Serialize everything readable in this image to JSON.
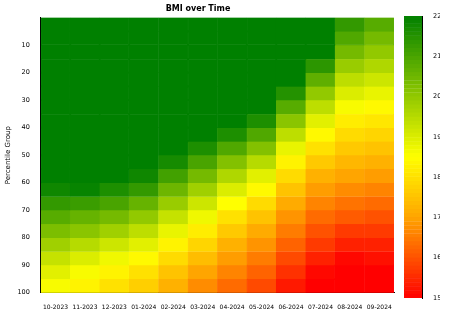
{
  "chart_data": {
    "type": "heatmap",
    "title": "BMI over Time",
    "y_label": "Percentile Group",
    "categories": [
      "10-2023",
      "11-2023",
      "12-2023",
      "01-2024",
      "02-2024",
      "03-2024",
      "04-2024",
      "05-2024",
      "06-2024",
      "07-2024",
      "08-2024",
      "09-2024"
    ],
    "y": [
      5,
      10,
      15,
      20,
      25,
      30,
      35,
      40,
      45,
      50,
      55,
      60,
      65,
      70,
      75,
      80,
      85,
      90,
      95,
      100
    ],
    "ylim": [
      0,
      100
    ],
    "yticks": [
      10,
      20,
      30,
      40,
      50,
      60,
      70,
      80,
      90,
      100
    ],
    "grid": false,
    "cells": [
      [
        22,
        22,
        22,
        22,
        22,
        22,
        22,
        22,
        22,
        22,
        21.3,
        20.8
      ],
      [
        22,
        22,
        22,
        22,
        22,
        22,
        22,
        22,
        22,
        22,
        20.9,
        20.4
      ],
      [
        22,
        22,
        22,
        22,
        22,
        22,
        22,
        22,
        22,
        22,
        20.4,
        20.0
      ],
      [
        22,
        22,
        22,
        22,
        22,
        22,
        22,
        22,
        22,
        21.4,
        19.9,
        19.6
      ],
      [
        22,
        22,
        22,
        22,
        22,
        22,
        22,
        22,
        22,
        20.7,
        19.4,
        19.2
      ],
      [
        22,
        22,
        22,
        22,
        22,
        22,
        22,
        22,
        21.5,
        20.0,
        19.0,
        18.8
      ],
      [
        22,
        22,
        22,
        22,
        22,
        22,
        22,
        22,
        20.8,
        19.4,
        18.6,
        18.4
      ],
      [
        22,
        22,
        22,
        22,
        22,
        22,
        22,
        21.6,
        20.1,
        18.9,
        18.2,
        18.1
      ],
      [
        22,
        22,
        22,
        22,
        22,
        22,
        21.6,
        20.9,
        19.4,
        18.4,
        17.9,
        17.8
      ],
      [
        22,
        22,
        22,
        22,
        22,
        21.6,
        20.9,
        20.2,
        18.8,
        18.0,
        17.6,
        17.5
      ],
      [
        22,
        22,
        22,
        22,
        21.7,
        21.0,
        20.2,
        19.5,
        18.3,
        17.6,
        17.3,
        17.2
      ],
      [
        22,
        22,
        22,
        21.8,
        21.1,
        20.4,
        19.6,
        18.9,
        17.9,
        17.2,
        17.0,
        16.9
      ],
      [
        21.8,
        21.9,
        21.6,
        21.3,
        20.5,
        19.8,
        19.0,
        18.4,
        17.5,
        16.9,
        16.7,
        16.6
      ],
      [
        21.3,
        21.2,
        21.0,
        20.6,
        19.9,
        19.2,
        18.5,
        17.9,
        17.1,
        16.6,
        16.4,
        16.3
      ],
      [
        20.8,
        20.6,
        20.4,
        20.0,
        19.3,
        18.7,
        18.0,
        17.5,
        16.8,
        16.3,
        16.1,
        16.0
      ],
      [
        20.3,
        20.1,
        19.8,
        19.4,
        18.8,
        18.2,
        17.6,
        17.1,
        16.5,
        16.0,
        15.7,
        15.7
      ],
      [
        19.8,
        19.5,
        19.2,
        18.9,
        18.3,
        17.8,
        17.2,
        16.8,
        16.2,
        15.7,
        15.4,
        15.4
      ],
      [
        19.3,
        19.0,
        18.7,
        18.4,
        17.9,
        17.4,
        16.9,
        16.5,
        15.9,
        15.4,
        15.1,
        15.2
      ],
      [
        18.9,
        18.6,
        18.3,
        18.0,
        17.5,
        17.0,
        16.6,
        16.2,
        15.6,
        15.1,
        15.0,
        15.0
      ],
      [
        18.6,
        18.3,
        18.0,
        17.7,
        17.2,
        16.7,
        16.3,
        15.9,
        15.3,
        15.0,
        15.0,
        15.0
      ]
    ],
    "colorbar": {
      "lim": [
        15,
        22
      ],
      "ticks": [
        15,
        16,
        17,
        18,
        19,
        20,
        21,
        22
      ]
    }
  }
}
